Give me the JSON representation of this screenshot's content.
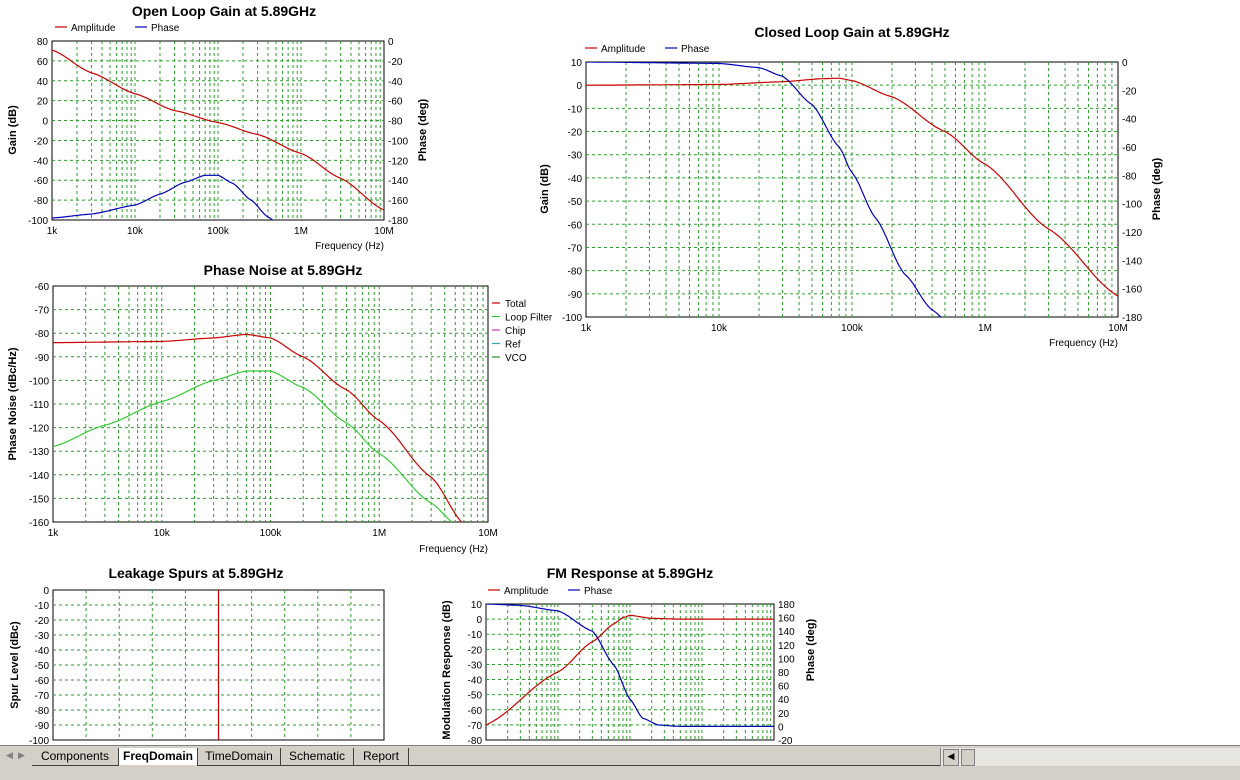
{
  "colors": {
    "amplitude": "#cc0000",
    "phase": "#0000bb",
    "grid": "#2e9d2e",
    "loop_filter": "#33cc33",
    "chip": "#cc33cc",
    "ref": "#33aaaa",
    "vco": "#2e8b2e"
  },
  "chart_data": [
    {
      "id": "open_loop",
      "type": "line",
      "title": "Open Loop Gain at 5.89GHz",
      "xlabel": "Frequency (Hz)",
      "ylabel": "Gain (dB)",
      "y2label": "Phase (deg)",
      "legend_position": "top-left",
      "xscale": "log",
      "xlim": [
        1000,
        10000000
      ],
      "ylim": [
        -100,
        80
      ],
      "y2lim": [
        -180,
        0
      ],
      "xticks": [
        "1k",
        "10k",
        "100k",
        "1M",
        "10M"
      ],
      "yticks": [
        "80",
        "60",
        "40",
        "20",
        "0",
        "-20",
        "-40",
        "-60",
        "-80",
        "-100"
      ],
      "y2ticks": [
        "0",
        "-20",
        "-40",
        "-60",
        "-80",
        "-100",
        "-120",
        "-140",
        "-160",
        "-180"
      ],
      "grid": true,
      "series": [
        {
          "name": "Amplitude",
          "axis": "left",
          "color": "#cc0000",
          "x": [
            1000,
            3000,
            10000,
            30000,
            100000,
            300000,
            1000000,
            3000000,
            10000000
          ],
          "y": [
            71,
            48,
            27,
            10,
            -2,
            -14,
            -33,
            -58,
            -90
          ]
        },
        {
          "name": "Phase",
          "axis": "right",
          "color": "#0000bb",
          "x": [
            1000,
            3000,
            10000,
            20000,
            40000,
            70000,
            100000,
            150000,
            250000,
            400000,
            500000
          ],
          "y": [
            -178,
            -174,
            -165,
            -154,
            -142,
            -135,
            -135,
            -143,
            -160,
            -177,
            -182
          ]
        }
      ]
    },
    {
      "id": "closed_loop",
      "type": "line",
      "title": "Closed Loop Gain at 5.89GHz",
      "xlabel": "Frequency (Hz)",
      "ylabel": "Gain (dB)",
      "y2label": "Phase (deg)",
      "legend_position": "top-left",
      "xscale": "log",
      "xlim": [
        1000,
        10000000
      ],
      "ylim": [
        -100,
        10
      ],
      "y2lim": [
        -180,
        0
      ],
      "xticks": [
        "1k",
        "10k",
        "100k",
        "1M",
        "10M"
      ],
      "yticks": [
        "10",
        "0",
        "-10",
        "-20",
        "-30",
        "-40",
        "-50",
        "-60",
        "-70",
        "-80",
        "-90",
        "-100"
      ],
      "y2ticks": [
        "0",
        "-20",
        "-40",
        "-60",
        "-80",
        "-100",
        "-120",
        "-140",
        "-160",
        "-180"
      ],
      "grid": true,
      "series": [
        {
          "name": "Amplitude",
          "axis": "left",
          "color": "#cc0000",
          "x": [
            1000,
            10000,
            30000,
            60000,
            80000,
            100000,
            200000,
            500000,
            1000000,
            3000000,
            10000000
          ],
          "y": [
            0,
            0.3,
            1.5,
            2.8,
            3,
            2,
            -5,
            -20,
            -34,
            -62,
            -91
          ]
        },
        {
          "name": "Phase",
          "axis": "right",
          "color": "#0000bb",
          "x": [
            1000,
            10000,
            20000,
            30000,
            50000,
            80000,
            100000,
            150000,
            250000,
            400000,
            500000
          ],
          "y": [
            0,
            -1,
            -4,
            -10,
            -30,
            -60,
            -78,
            -110,
            -150,
            -175,
            -182
          ]
        }
      ]
    },
    {
      "id": "phase_noise",
      "type": "line",
      "title": "Phase Noise at 5.89GHz",
      "xlabel": "Frequency (Hz)",
      "ylabel": "Phase Noise (dBc/Hz)",
      "legend_position": "right",
      "xscale": "log",
      "xlim": [
        1000,
        10000000
      ],
      "ylim": [
        -160,
        -60
      ],
      "xticks": [
        "1k",
        "10k",
        "100k",
        "1M",
        "10M"
      ],
      "yticks": [
        "-60",
        "-70",
        "-80",
        "-90",
        "-100",
        "-110",
        "-120",
        "-130",
        "-140",
        "-150",
        "-160"
      ],
      "grid": true,
      "legend": [
        "Total",
        "Loop Filter",
        "Chip",
        "Ref",
        "VCO"
      ],
      "series": [
        {
          "name": "Total",
          "color": "#cc0000",
          "x": [
            1000,
            10000,
            30000,
            60000,
            100000,
            200000,
            500000,
            1000000,
            3000000,
            6000000
          ],
          "y": [
            -84,
            -83.5,
            -82,
            -80.5,
            -82,
            -90,
            -104,
            -117,
            -141,
            -161
          ]
        },
        {
          "name": "Loop Filter",
          "color": "#33cc33",
          "x": [
            1000,
            3000,
            10000,
            30000,
            60000,
            100000,
            200000,
            500000,
            1000000,
            3000000,
            5000000
          ],
          "y": [
            -128,
            -119,
            -109,
            -100,
            -96,
            -96,
            -103,
            -118,
            -131,
            -152,
            -161
          ]
        }
      ]
    },
    {
      "id": "leakage_spurs",
      "type": "bar",
      "title": "Leakage Spurs at 5.89GHz",
      "ylabel": "Spur Level (dBc)",
      "ylim": [
        -100,
        0
      ],
      "yticks": [
        "0",
        "-10",
        "-20",
        "-30",
        "-40",
        "-50",
        "-60",
        "-70",
        "-80",
        "-90",
        "-100"
      ],
      "grid": true,
      "spur_position_fraction": 0.5,
      "spur_level": 0
    },
    {
      "id": "fm_response",
      "type": "line",
      "title": "FM Response at 5.89GHz",
      "ylabel": "Modulation Response (dB)",
      "y2label": "Phase (deg)",
      "legend_position": "top-left",
      "xscale": "log",
      "xlim": [
        1000,
        10000000
      ],
      "ylim": [
        -80,
        10
      ],
      "y2lim": [
        -20,
        180
      ],
      "yticks": [
        "10",
        "0",
        "-10",
        "-20",
        "-30",
        "-40",
        "-50",
        "-60",
        "-70",
        "-80"
      ],
      "y2ticks": [
        "180",
        "160",
        "140",
        "120",
        "100",
        "80",
        "60",
        "40",
        "20",
        "0",
        "-20"
      ],
      "grid": true,
      "series": [
        {
          "name": "Amplitude",
          "axis": "left",
          "color": "#cc0000",
          "x": [
            1000,
            10000,
            30000,
            60000,
            80000,
            100000,
            200000,
            500000,
            1000000,
            10000000
          ],
          "y": [
            -70,
            -35,
            -15,
            -3,
            1,
            2.5,
            0.5,
            0,
            0,
            0
          ]
        },
        {
          "name": "Phase",
          "axis": "right",
          "color": "#0000bb",
          "x": [
            1000,
            3000,
            10000,
            30000,
            60000,
            100000,
            150000,
            250000,
            500000,
            1000000,
            10000000
          ],
          "y": [
            180,
            178,
            170,
            140,
            90,
            40,
            12,
            2,
            0,
            0,
            0
          ]
        }
      ]
    }
  ],
  "tabs": [
    {
      "label": "Components",
      "active": false
    },
    {
      "label": "FreqDomain",
      "active": true
    },
    {
      "label": "TimeDomain",
      "active": false
    },
    {
      "label": "Schematic",
      "active": false
    },
    {
      "label": "Report",
      "active": false
    }
  ],
  "nav": {
    "prev_icon": "triangle-left-icon",
    "next_icon": "triangle-right-icon",
    "scroll_left_icon": "scroll-left-icon"
  }
}
